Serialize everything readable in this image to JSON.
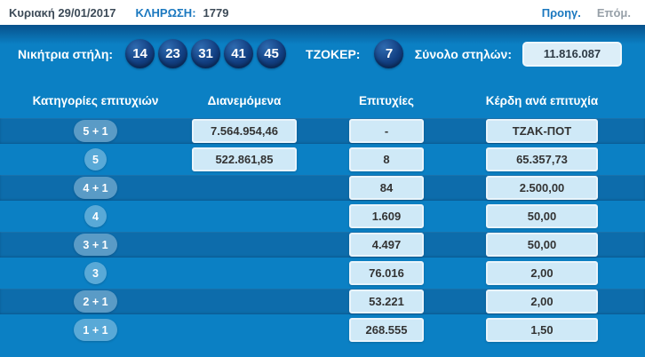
{
  "topbar": {
    "date": "Κυριακή 29/01/2017",
    "draw_label": "ΚΛΗΡΩΣΗ:",
    "draw_number": "1779",
    "prev_label": "Προηγ.",
    "next_label": "Επόμ."
  },
  "panel": {
    "winning_label": "Νικήτρια στήλη:",
    "winning_numbers": [
      "14",
      "23",
      "31",
      "41",
      "45"
    ],
    "joker_label": "ΤΖΟΚΕΡ:",
    "joker_number": "7",
    "total_label": "Σύνολο στηλών:",
    "total_value": "11.816.087"
  },
  "table": {
    "headers": [
      "Κατηγορίες επιτυχιών",
      "Διανεμόμενα",
      "Επιτυχίες",
      "Κέρδη ανά επιτυχία"
    ],
    "rows": [
      {
        "category": "5 + 1",
        "distributed": "7.564.954,46",
        "wins": "-",
        "prize": "ΤΖΑΚ-ΠΟΤ"
      },
      {
        "category": "5",
        "distributed": "522.861,85",
        "wins": "8",
        "prize": "65.357,73"
      },
      {
        "category": "4 + 1",
        "distributed": "",
        "wins": "84",
        "prize": "2.500,00"
      },
      {
        "category": "4",
        "distributed": "",
        "wins": "1.609",
        "prize": "50,00"
      },
      {
        "category": "3 + 1",
        "distributed": "",
        "wins": "4.497",
        "prize": "50,00"
      },
      {
        "category": "3",
        "distributed": "",
        "wins": "76.016",
        "prize": "2,00"
      },
      {
        "category": "2 + 1",
        "distributed": "",
        "wins": "53.221",
        "prize": "2,00"
      },
      {
        "category": "1 + 1",
        "distributed": "",
        "wins": "268.555",
        "prize": "1,50"
      }
    ]
  },
  "colors": {
    "panel_blue": "#0b80c4",
    "dark_row_blue": "#0d6cab",
    "ball_navy": "#0d3b7c",
    "value_box_bg": "#cfe9f7",
    "link_blue": "#1b78bf",
    "disabled_link_gray": "#97a0a8"
  }
}
